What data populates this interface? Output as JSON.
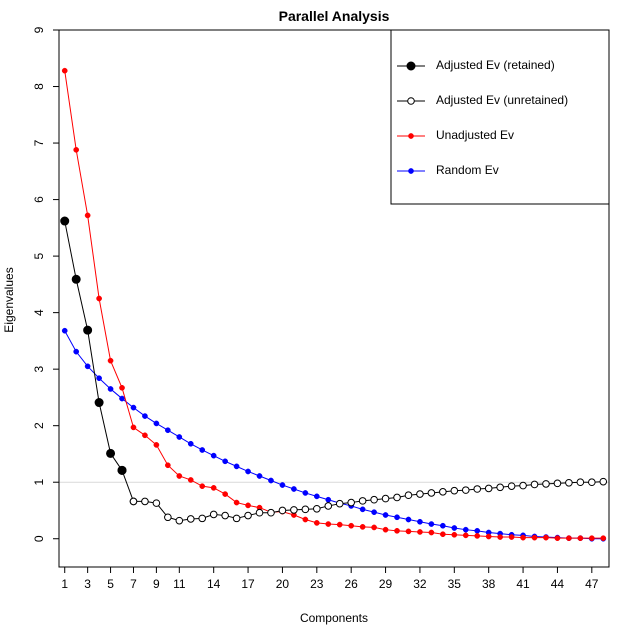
{
  "chart_data": {
    "type": "line",
    "title": "Parallel Analysis",
    "xlabel": "Components",
    "ylabel": "Eigenvalues",
    "xlim": [
      0.5,
      48.5
    ],
    "ylim": [
      -0.5,
      9
    ],
    "xticks": [
      1,
      3,
      5,
      7,
      9,
      11,
      14,
      17,
      20,
      23,
      26,
      29,
      32,
      35,
      38,
      41,
      44,
      47
    ],
    "yticks": [
      0,
      1,
      2,
      3,
      4,
      5,
      6,
      7,
      8,
      9
    ],
    "reference_line": 1,
    "legend_position": "top-right",
    "series": [
      {
        "name": "Adjusted Ev (retained)",
        "color": "#000000",
        "marker": "filled-circle",
        "x": [
          1,
          2,
          3,
          4,
          5,
          6
        ],
        "values": [
          5.62,
          4.59,
          3.69,
          2.41,
          1.51,
          1.21
        ]
      },
      {
        "name": "Adjusted Ev (unretained)",
        "color": "#000000",
        "marker": "open-circle",
        "x": [
          7,
          8,
          9,
          10,
          11,
          12,
          13,
          14,
          15,
          16,
          17,
          18,
          19,
          20,
          21,
          22,
          23,
          24,
          25,
          26,
          27,
          28,
          29,
          30,
          31,
          32,
          33,
          34,
          35,
          36,
          37,
          38,
          39,
          40,
          41,
          42,
          43,
          44,
          45,
          46,
          47,
          48
        ],
        "values": [
          0.66,
          0.66,
          0.63,
          0.38,
          0.32,
          0.35,
          0.36,
          0.43,
          0.41,
          0.36,
          0.41,
          0.46,
          0.46,
          0.5,
          0.51,
          0.52,
          0.53,
          0.58,
          0.62,
          0.64,
          0.67,
          0.69,
          0.71,
          0.73,
          0.77,
          0.79,
          0.81,
          0.83,
          0.85,
          0.86,
          0.88,
          0.89,
          0.91,
          0.93,
          0.94,
          0.96,
          0.97,
          0.98,
          0.99,
          1.0,
          1.0,
          1.01
        ]
      },
      {
        "name": "Unadjusted Ev",
        "color": "#ff0000",
        "marker": "small-dot",
        "x": [
          1,
          2,
          3,
          4,
          5,
          6,
          7,
          8,
          9,
          10,
          11,
          12,
          13,
          14,
          15,
          16,
          17,
          18,
          19,
          20,
          21,
          22,
          23,
          24,
          25,
          26,
          27,
          28,
          29,
          30,
          31,
          32,
          33,
          34,
          35,
          36,
          37,
          38,
          39,
          40,
          41,
          42,
          43,
          44,
          45,
          46,
          47,
          48
        ],
        "values": [
          8.28,
          6.88,
          5.72,
          4.25,
          3.15,
          2.67,
          1.97,
          1.83,
          1.66,
          1.3,
          1.11,
          1.04,
          0.93,
          0.9,
          0.79,
          0.64,
          0.59,
          0.55,
          0.47,
          0.48,
          0.42,
          0.34,
          0.28,
          0.26,
          0.25,
          0.23,
          0.21,
          0.2,
          0.16,
          0.14,
          0.13,
          0.12,
          0.11,
          0.08,
          0.07,
          0.06,
          0.05,
          0.04,
          0.03,
          0.03,
          0.02,
          0.02,
          0.02,
          0.01,
          0.01,
          0.01,
          0.01,
          0.01
        ]
      },
      {
        "name": "Random Ev",
        "color": "#0000ff",
        "marker": "small-dot",
        "x": [
          1,
          2,
          3,
          4,
          5,
          6,
          7,
          8,
          9,
          10,
          11,
          12,
          13,
          14,
          15,
          16,
          17,
          18,
          19,
          20,
          21,
          22,
          23,
          24,
          25,
          26,
          27,
          28,
          29,
          30,
          31,
          32,
          33,
          34,
          35,
          36,
          37,
          38,
          39,
          40,
          41,
          42,
          43,
          44,
          45,
          46,
          47,
          48
        ],
        "values": [
          3.68,
          3.31,
          3.05,
          2.84,
          2.65,
          2.48,
          2.32,
          2.17,
          2.04,
          1.92,
          1.8,
          1.68,
          1.57,
          1.47,
          1.37,
          1.28,
          1.19,
          1.11,
          1.03,
          0.95,
          0.88,
          0.81,
          0.75,
          0.69,
          0.63,
          0.58,
          0.52,
          0.47,
          0.42,
          0.38,
          0.34,
          0.3,
          0.26,
          0.23,
          0.19,
          0.16,
          0.14,
          0.11,
          0.09,
          0.07,
          0.06,
          0.04,
          0.03,
          0.02,
          0.01,
          0.01,
          0.0,
          0.0
        ]
      }
    ]
  }
}
